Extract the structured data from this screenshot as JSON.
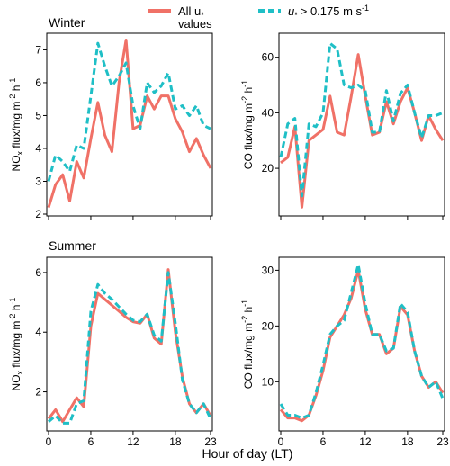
{
  "legend": {
    "series1_label_line1": "All u",
    "series1_label_sub": "*",
    "series1_label_line2": "values",
    "series2_label_u": "u",
    "series2_label_sub": "*",
    "series2_label_rest": "> 0.175 m s",
    "series2_label_sup": "-1"
  },
  "x_title": "Hour of day (LT)",
  "colors": {
    "all": "#f07167",
    "filtered": "#1fbfc6"
  },
  "chart_data": [
    {
      "id": "winter-nox",
      "type": "line",
      "title": "Winter",
      "ylabel": {
        "main": "NO",
        "sub": "x",
        "rest": " flux/mg m",
        "sup1": "-2",
        "mid": " h",
        "sup2": "-1"
      },
      "x": [
        0,
        1,
        2,
        3,
        4,
        5,
        6,
        7,
        8,
        9,
        10,
        11,
        12,
        13,
        14,
        15,
        16,
        17,
        18,
        19,
        20,
        21,
        22,
        23
      ],
      "xlim": [
        0,
        23
      ],
      "ylim": [
        2,
        7.45
      ],
      "xticks": [
        "0",
        "6",
        "12",
        "18",
        "23"
      ],
      "xtick_values": [
        0,
        6,
        12,
        18,
        23
      ],
      "yticks": [
        "2",
        "3",
        "4",
        "5",
        "6",
        "7"
      ],
      "ytick_values": [
        2,
        3,
        4,
        5,
        6,
        7
      ],
      "series": [
        {
          "name": "All u* values",
          "style": "solid",
          "values": [
            2.2,
            2.9,
            3.2,
            2.4,
            3.6,
            3.1,
            4.3,
            5.4,
            4.4,
            3.9,
            6.0,
            7.3,
            4.6,
            4.7,
            5.6,
            5.2,
            5.6,
            5.6,
            4.9,
            4.5,
            3.9,
            4.3,
            3.8,
            3.4
          ]
        },
        {
          "name": "u* > 0.175 m s-1",
          "style": "dashed",
          "values": [
            3.0,
            3.8,
            3.6,
            3.3,
            4.1,
            4.0,
            5.6,
            7.2,
            6.5,
            5.9,
            6.2,
            6.6,
            5.3,
            4.6,
            6.0,
            5.7,
            5.9,
            6.3,
            5.2,
            5.3,
            5.0,
            5.3,
            4.7,
            4.6
          ]
        }
      ]
    },
    {
      "id": "winter-co",
      "type": "line",
      "title": "",
      "ylabel": {
        "main": "CO",
        "sub": "",
        "rest": " flux/mg m",
        "sup1": "-2",
        "mid": " h",
        "sup2": "-1"
      },
      "x": [
        0,
        1,
        2,
        3,
        4,
        5,
        6,
        7,
        8,
        9,
        10,
        11,
        12,
        13,
        14,
        15,
        16,
        17,
        18,
        19,
        20,
        21,
        22,
        23
      ],
      "xlim": [
        0,
        23
      ],
      "ylim": [
        3.5,
        68
      ],
      "xticks": [
        "0",
        "6",
        "12",
        "18",
        "23"
      ],
      "xtick_values": [
        0,
        6,
        12,
        18,
        23
      ],
      "yticks": [
        "20",
        "40",
        "60"
      ],
      "ytick_values": [
        20,
        40,
        60
      ],
      "series": [
        {
          "name": "All u* values",
          "style": "solid",
          "values": [
            22,
            24,
            35,
            6,
            30,
            32,
            34,
            46,
            33,
            32,
            46,
            61,
            46,
            32,
            33,
            44,
            36,
            44,
            49,
            40,
            30,
            39,
            34,
            30
          ]
        },
        {
          "name": "u* > 0.175 m s-1",
          "style": "dashed",
          "values": [
            24,
            36,
            38,
            10,
            36,
            35,
            40,
            65,
            63,
            50,
            49,
            50,
            48,
            33,
            33,
            48,
            37,
            47,
            50,
            40,
            31,
            39,
            39,
            40
          ]
        }
      ]
    },
    {
      "id": "summer-nox",
      "type": "line",
      "title": "Summer",
      "ylabel": {
        "main": "NO",
        "sub": "x",
        "rest": " flux/mg m",
        "sup1": "-2",
        "mid": " h",
        "sup2": "-1"
      },
      "x": [
        0,
        1,
        2,
        3,
        4,
        5,
        6,
        7,
        8,
        9,
        10,
        11,
        12,
        13,
        14,
        15,
        16,
        17,
        18,
        19,
        20,
        21,
        22,
        23
      ],
      "xlim": [
        0,
        23
      ],
      "ylim": [
        0.75,
        6.45
      ],
      "xticks": [
        "0",
        "6",
        "12",
        "18",
        "23"
      ],
      "xtick_values": [
        0,
        6,
        12,
        18,
        23
      ],
      "yticks": [
        "2",
        "4",
        "6"
      ],
      "ytick_values": [
        2,
        4,
        6
      ],
      "series": [
        {
          "name": "All u* values",
          "style": "solid",
          "values": [
            1.1,
            1.4,
            1.0,
            1.4,
            1.8,
            1.5,
            4.2,
            5.3,
            5.1,
            4.9,
            4.7,
            4.5,
            4.35,
            4.3,
            4.6,
            3.8,
            3.6,
            6.1,
            4.0,
            2.5,
            1.6,
            1.3,
            1.6,
            1.2
          ]
        },
        {
          "name": "u* > 0.175 m s-1",
          "style": "dashed",
          "values": [
            1.0,
            1.2,
            0.95,
            0.95,
            1.6,
            1.7,
            4.7,
            5.6,
            5.3,
            5.1,
            4.85,
            4.6,
            4.4,
            4.35,
            4.6,
            3.9,
            3.7,
            6.0,
            4.3,
            2.4,
            1.6,
            1.3,
            1.6,
            1.1
          ]
        }
      ]
    },
    {
      "id": "summer-co",
      "type": "line",
      "title": "",
      "ylabel": {
        "main": "CO",
        "sub": "",
        "rest": " flux/mg m",
        "sup1": "-2",
        "mid": " h",
        "sup2": "-1"
      },
      "x": [
        0,
        1,
        2,
        3,
        4,
        5,
        6,
        7,
        8,
        9,
        10,
        11,
        12,
        13,
        14,
        15,
        16,
        17,
        18,
        19,
        20,
        21,
        22,
        23
      ],
      "xlim": [
        0,
        23
      ],
      "ylim": [
        1.5,
        32
      ],
      "xticks": [
        "0",
        "6",
        "12",
        "18",
        "23"
      ],
      "xtick_values": [
        0,
        6,
        12,
        18,
        23
      ],
      "yticks": [
        "10",
        "20",
        "30"
      ],
      "ytick_values": [
        10,
        20,
        30
      ],
      "series": [
        {
          "name": "All u* values",
          "style": "solid",
          "values": [
            5,
            3.5,
            3.5,
            3.0,
            4.0,
            7.5,
            12,
            18,
            20,
            22,
            25,
            30,
            23,
            18.5,
            18.5,
            15,
            16,
            23.5,
            22,
            15.5,
            11,
            9,
            10,
            8
          ]
        },
        {
          "name": "u* > 0.175 m s-1",
          "style": "dashed",
          "values": [
            6,
            4,
            4,
            3.5,
            4,
            8,
            13,
            18.5,
            20,
            21,
            26,
            31,
            24,
            18.5,
            18.5,
            15.5,
            16,
            24,
            22.5,
            15.5,
            11,
            9,
            10,
            7
          ]
        }
      ]
    }
  ]
}
